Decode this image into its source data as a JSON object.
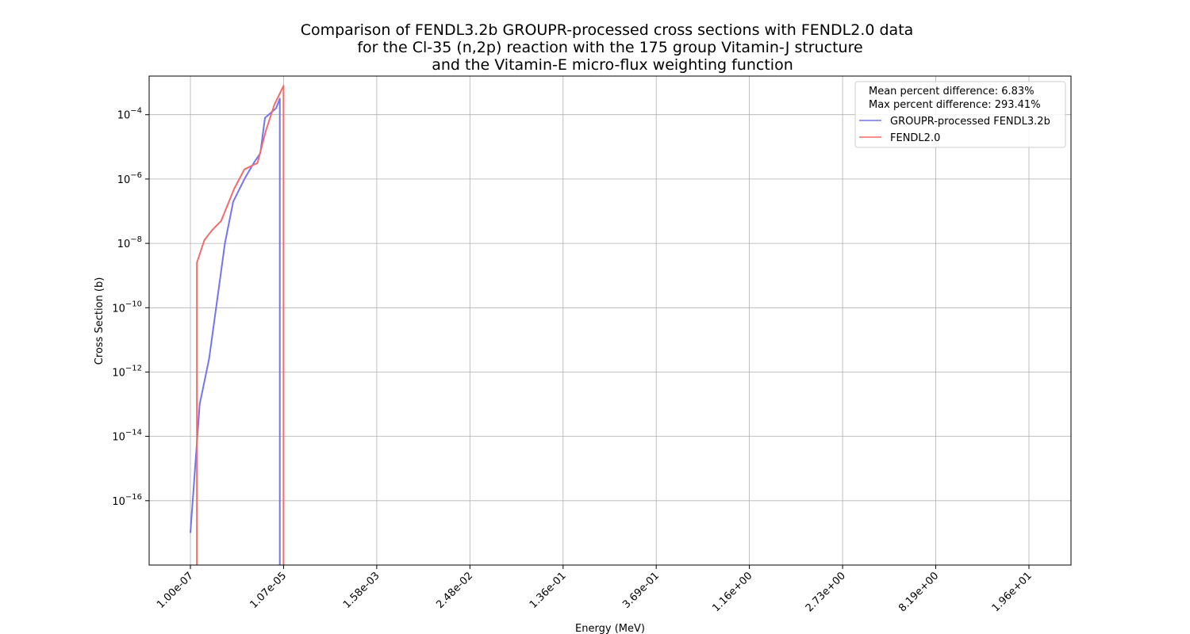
{
  "chart_data": {
    "type": "line",
    "title_lines": [
      "Comparison of FENDL3.2b GROUPR-processed cross sections with FENDL2.0 data",
      "for the Cl-35 (n,2p) reaction with the 175 group Vitamin-J structure",
      "and the Vitamin-E micro-flux weighting function"
    ],
    "xlabel": "Energy (MeV)",
    "ylabel": "Cross Section (b)",
    "y_scale": "log",
    "ylim_exponent": [
      -18.0,
      -2.8
    ],
    "y_tick_exponents": [
      -16,
      -14,
      -12,
      -10,
      -8,
      -6,
      -4
    ],
    "x_ticks": [
      "1.00e-07",
      "1.07e-05",
      "1.58e-03",
      "2.48e-02",
      "1.36e-01",
      "3.69e-01",
      "1.16e+00",
      "2.73e+00",
      "8.19e+00",
      "1.96e+01"
    ],
    "x_axis": "categorical (group index)",
    "grid": true,
    "legend_position": "top-right",
    "legend_notes": [
      "Mean percent difference: 6.83%",
      "Max percent difference: 293.41%"
    ],
    "series": [
      {
        "name": "GROUPR-processed FENDL3.2b",
        "color": "#7474f0",
        "points": [
          [
            0.0,
            -17.0
          ],
          [
            0.1,
            -13.0
          ],
          [
            0.2,
            -11.6
          ],
          [
            0.3,
            -9.5
          ],
          [
            0.37,
            -8.0
          ],
          [
            0.46,
            -6.7
          ],
          [
            0.58,
            -6.0
          ],
          [
            0.68,
            -5.5
          ],
          [
            0.75,
            -5.2
          ],
          [
            0.8,
            -4.1
          ],
          [
            0.92,
            -3.8
          ],
          [
            0.96,
            -3.5
          ],
          [
            0.96,
            -18.0
          ]
        ]
      },
      {
        "name": "FENDL2.0",
        "color": "#f46b6b",
        "points": [
          [
            0.07,
            -18.0
          ],
          [
            0.07,
            -8.6
          ],
          [
            0.15,
            -7.9
          ],
          [
            0.23,
            -7.6
          ],
          [
            0.33,
            -7.3
          ],
          [
            0.47,
            -6.3
          ],
          [
            0.58,
            -5.7
          ],
          [
            0.72,
            -5.5
          ],
          [
            0.81,
            -4.5
          ],
          [
            0.9,
            -3.7
          ],
          [
            1.0,
            -3.1
          ],
          [
            1.0,
            -18.0
          ]
        ]
      }
    ]
  }
}
